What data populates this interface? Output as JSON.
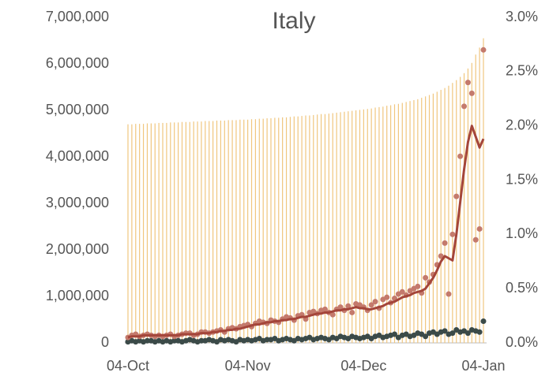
{
  "chart_data": {
    "type": "bar",
    "title": "Italy",
    "categories": [
      "04-Oct",
      null,
      null,
      null,
      null,
      null,
      null,
      null,
      null,
      null,
      null,
      null,
      null,
      null,
      null,
      null,
      null,
      null,
      null,
      null,
      null,
      null,
      null,
      null,
      null,
      null,
      null,
      null,
      null,
      null,
      null,
      "04-Nov",
      null,
      null,
      null,
      null,
      null,
      null,
      null,
      null,
      null,
      null,
      null,
      null,
      null,
      null,
      null,
      null,
      null,
      null,
      null,
      null,
      null,
      null,
      null,
      null,
      null,
      null,
      null,
      null,
      null,
      "04-Dec",
      null,
      null,
      null,
      null,
      null,
      null,
      null,
      null,
      null,
      null,
      null,
      null,
      null,
      null,
      null,
      null,
      null,
      null,
      null,
      null,
      null,
      null,
      null,
      null,
      null,
      null,
      null,
      null,
      null,
      null,
      "04-Jan"
    ],
    "ylim": [
      0,
      7000000
    ],
    "yticks": [
      0,
      {
        "value": 1000000,
        "label": "1,000,000"
      },
      {
        "value": 2000000,
        "label": "2,000,000"
      },
      {
        "value": 3000000,
        "label": "3,000,000"
      },
      {
        "value": 4000000,
        "label": "4,000,000"
      },
      {
        "value": 5000000,
        "label": "5,000,000"
      },
      {
        "value": 6000000,
        "label": "6,000,000"
      },
      {
        "value": 7000000,
        "label": "7,000,000"
      }
    ],
    "y2lim": [
      0,
      3.0
    ],
    "y2ticks": [
      {
        "value": 0,
        "label": "0.0%"
      },
      {
        "value": 0.5,
        "label": "0.5%"
      },
      {
        "value": 1.0,
        "label": "1.0%"
      },
      {
        "value": 1.5,
        "label": "1.5%"
      },
      {
        "value": 2.0,
        "label": "2.0%"
      },
      {
        "value": 2.5,
        "label": "2.5%"
      },
      {
        "value": 3.0,
        "label": "3.0%"
      }
    ],
    "series": [
      {
        "type": "bar",
        "color": "#f0c67e",
        "values": [
          4700000,
          4700000,
          4710000,
          4710000,
          4710000,
          4720000,
          4720000,
          4720000,
          4730000,
          4730000,
          4730000,
          4740000,
          4740000,
          4740000,
          4750000,
          4750000,
          4750000,
          4760000,
          4760000,
          4760000,
          4770000,
          4770000,
          4770000,
          4780000,
          4780000,
          4780000,
          4790000,
          4790000,
          4790000,
          4800000,
          4800000,
          4800000,
          4810000,
          4810000,
          4820000,
          4820000,
          4830000,
          4830000,
          4840000,
          4840000,
          4850000,
          4850000,
          4860000,
          4870000,
          4870000,
          4880000,
          4890000,
          4890000,
          4900000,
          4910000,
          4920000,
          4920000,
          4930000,
          4940000,
          4950000,
          4960000,
          4970000,
          4980000,
          4990000,
          5000000,
          5010000,
          5020000,
          5030000,
          5040000,
          5060000,
          5070000,
          5080000,
          5100000,
          5110000,
          5130000,
          5140000,
          5160000,
          5180000,
          5200000,
          5220000,
          5240000,
          5270000,
          5300000,
          5330000,
          5360000,
          5400000,
          5440000,
          5480000,
          5530000,
          5590000,
          5650000,
          5720000,
          5800000,
          5900000,
          6020000,
          6200000,
          6350000,
          6550000
        ]
      },
      {
        "type": "scatter",
        "axis": "y2",
        "color": "#3b4a48",
        "values": [
          0.01,
          0.02,
          0.01,
          0.02,
          0.01,
          0.02,
          0.02,
          0.01,
          0.02,
          0.01,
          0.02,
          0.01,
          0.02,
          0.02,
          0.01,
          0.02,
          0.03,
          0.02,
          0.01,
          0.02,
          0.02,
          0.03,
          0.02,
          0.01,
          0.03,
          0.02,
          0.03,
          0.02,
          0.01,
          0.03,
          0.02,
          0.03,
          0.02,
          0.03,
          0.04,
          0.02,
          0.03,
          0.03,
          0.04,
          0.02,
          0.03,
          0.04,
          0.03,
          0.02,
          0.04,
          0.03,
          0.04,
          0.05,
          0.03,
          0.04,
          0.05,
          0.04,
          0.03,
          0.05,
          0.04,
          0.06,
          0.05,
          0.04,
          0.06,
          0.05,
          0.04,
          0.05,
          0.06,
          0.04,
          0.06,
          0.07,
          0.05,
          0.06,
          0.07,
          0.08,
          0.05,
          0.07,
          0.08,
          0.06,
          0.07,
          0.09,
          0.08,
          0.06,
          0.09,
          0.1,
          0.08,
          0.1,
          0.11,
          0.08,
          0.09,
          0.12,
          0.1,
          0.11,
          0.09,
          0.12,
          0.11,
          0.1,
          0.2
        ]
      },
      {
        "type": "scatter",
        "axis": "y2",
        "color": "#c47a6c",
        "values": [
          0.05,
          0.07,
          0.08,
          0.06,
          0.07,
          0.08,
          0.07,
          0.06,
          0.07,
          0.06,
          0.07,
          0.08,
          0.06,
          0.07,
          0.08,
          0.09,
          0.09,
          0.07,
          0.08,
          0.1,
          0.1,
          0.09,
          0.1,
          0.11,
          0.12,
          0.1,
          0.13,
          0.14,
          0.13,
          0.15,
          0.16,
          0.17,
          0.15,
          0.18,
          0.2,
          0.19,
          0.18,
          0.21,
          0.2,
          0.19,
          0.22,
          0.24,
          0.23,
          0.21,
          0.25,
          0.26,
          0.22,
          0.28,
          0.29,
          0.27,
          0.3,
          0.31,
          0.28,
          0.26,
          0.31,
          0.33,
          0.3,
          0.34,
          0.28,
          0.36,
          0.35,
          0.33,
          0.3,
          0.35,
          0.38,
          0.32,
          0.4,
          0.42,
          0.37,
          0.41,
          0.45,
          0.47,
          0.44,
          0.48,
          0.5,
          0.52,
          0.46,
          0.6,
          0.56,
          0.63,
          0.72,
          0.8,
          0.92,
          0.45,
          1.0,
          1.35,
          1.72,
          2.18,
          2.4,
          2.3,
          0.95,
          1.05,
          2.7
        ]
      },
      {
        "type": "line",
        "axis": "y2",
        "color": "#a4453a",
        "values": [
          0.05,
          0.06,
          0.06,
          0.06,
          0.07,
          0.07,
          0.07,
          0.07,
          0.07,
          0.07,
          0.07,
          0.07,
          0.07,
          0.07,
          0.08,
          0.08,
          0.08,
          0.08,
          0.08,
          0.09,
          0.09,
          0.09,
          0.1,
          0.1,
          0.11,
          0.11,
          0.12,
          0.12,
          0.13,
          0.13,
          0.14,
          0.15,
          0.16,
          0.17,
          0.17,
          0.18,
          0.19,
          0.19,
          0.2,
          0.2,
          0.21,
          0.21,
          0.22,
          0.22,
          0.23,
          0.24,
          0.24,
          0.25,
          0.26,
          0.27,
          0.27,
          0.28,
          0.28,
          0.29,
          0.3,
          0.3,
          0.31,
          0.31,
          0.32,
          0.33,
          0.32,
          0.32,
          0.31,
          0.31,
          0.32,
          0.33,
          0.34,
          0.36,
          0.37,
          0.38,
          0.4,
          0.42,
          0.43,
          0.44,
          0.46,
          0.47,
          0.48,
          0.5,
          0.55,
          0.6,
          0.67,
          0.75,
          0.8,
          0.78,
          0.76,
          1.0,
          1.3,
          1.6,
          1.85,
          2.0,
          1.9,
          1.8,
          1.88
        ]
      }
    ]
  }
}
